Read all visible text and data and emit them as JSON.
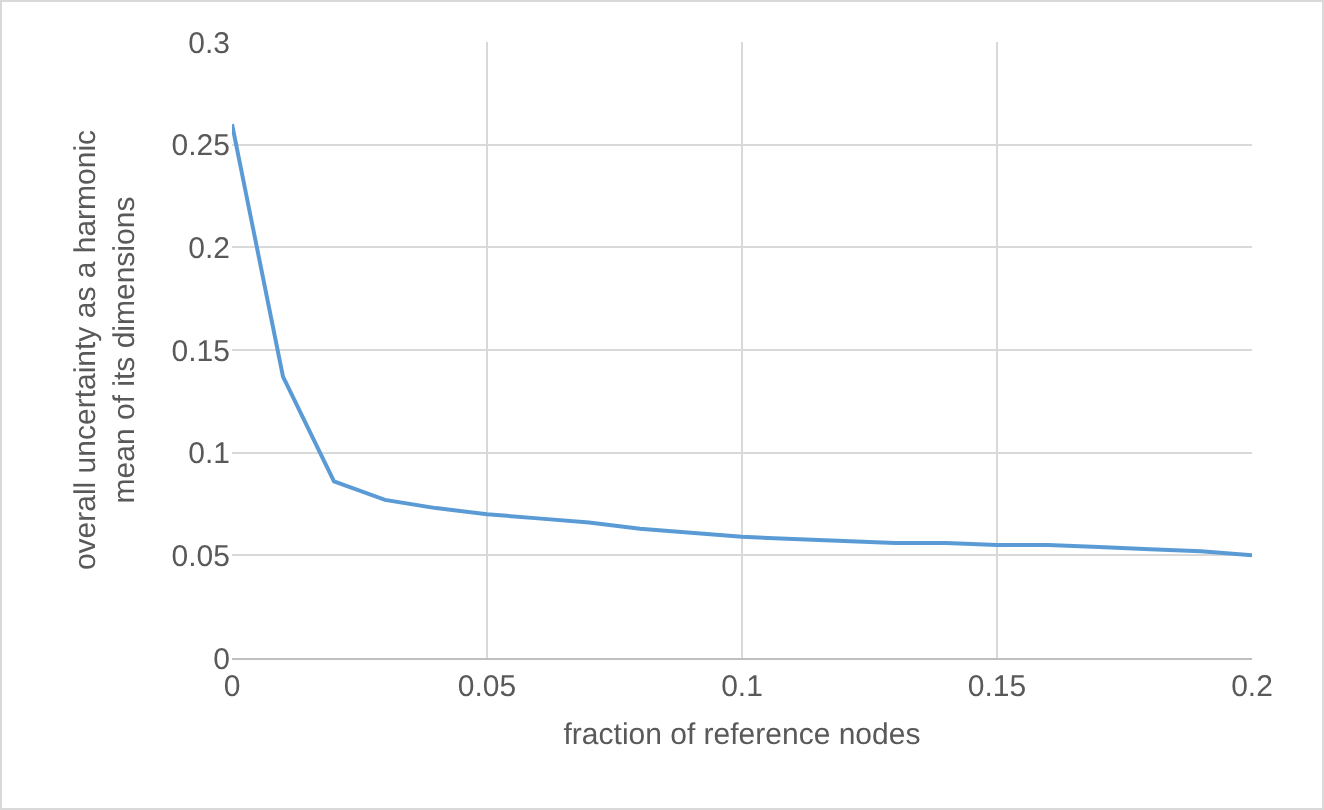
{
  "chart_data": {
    "type": "line",
    "xlabel": "fraction of reference nodes",
    "ylabel": "overall uncertainty as a harmonic mean of its dimensions",
    "x": [
      0,
      0.01,
      0.02,
      0.03,
      0.04,
      0.05,
      0.06,
      0.07,
      0.08,
      0.09,
      0.1,
      0.11,
      0.12,
      0.13,
      0.14,
      0.15,
      0.16,
      0.17,
      0.18,
      0.19,
      0.2
    ],
    "series": [
      {
        "color": "#5b9bd5",
        "values": [
          0.26,
          0.137,
          0.086,
          0.077,
          0.073,
          0.07,
          0.068,
          0.066,
          0.063,
          0.061,
          0.059,
          0.058,
          0.057,
          0.056,
          0.056,
          0.055,
          0.055,
          0.054,
          0.053,
          0.052,
          0.05
        ]
      }
    ],
    "xlim": [
      0,
      0.2
    ],
    "xticks": [
      0,
      0.05,
      0.1,
      0.15,
      0.2
    ],
    "ylim": [
      0,
      0.3
    ],
    "yticks": [
      0,
      0.05,
      0.1,
      0.15,
      0.2,
      0.25,
      0.3
    ],
    "grid": true,
    "marker": "none",
    "line_style": "solid"
  }
}
